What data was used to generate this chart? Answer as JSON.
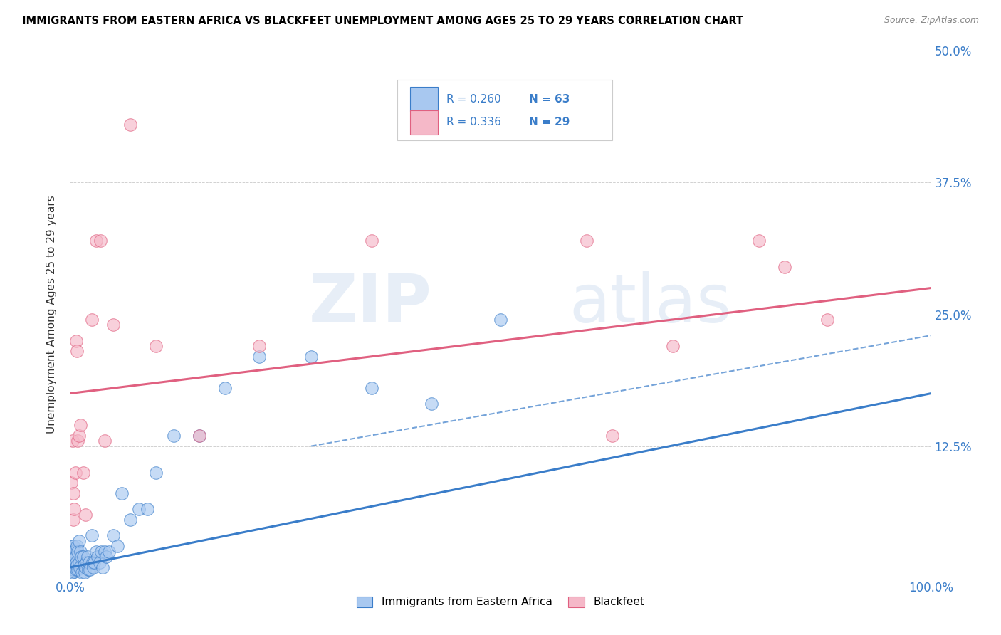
{
  "title": "IMMIGRANTS FROM EASTERN AFRICA VS BLACKFEET UNEMPLOYMENT AMONG AGES 25 TO 29 YEARS CORRELATION CHART",
  "source": "Source: ZipAtlas.com",
  "ylabel": "Unemployment Among Ages 25 to 29 years",
  "xlim": [
    0,
    1.0
  ],
  "ylim": [
    0,
    0.5
  ],
  "xtick_labels": [
    "0.0%",
    "100.0%"
  ],
  "xtick_positions": [
    0.0,
    1.0
  ],
  "ytick_labels": [
    "12.5%",
    "25.0%",
    "37.5%",
    "50.0%"
  ],
  "ytick_positions": [
    0.125,
    0.25,
    0.375,
    0.5
  ],
  "legend_label1": "Immigrants from Eastern Africa",
  "legend_label2": "Blackfeet",
  "r1": "0.260",
  "n1": "63",
  "r2": "0.336",
  "n2": "29",
  "color_blue": "#A8C8F0",
  "color_pink": "#F5B8C8",
  "color_blue_line": "#3A7DC9",
  "color_pink_line": "#E06080",
  "watermark_zip": "ZIP",
  "watermark_atlas": "atlas",
  "blue_line_start_y": 0.01,
  "blue_line_end_y": 0.175,
  "pink_line_start_y": 0.175,
  "pink_line_end_y": 0.275,
  "dash_line_start_x": 0.28,
  "dash_line_start_y": 0.125,
  "dash_line_end_x": 1.0,
  "dash_line_end_y": 0.23,
  "blue_x": [
    0.001,
    0.002,
    0.002,
    0.003,
    0.003,
    0.003,
    0.004,
    0.004,
    0.004,
    0.004,
    0.005,
    0.005,
    0.005,
    0.006,
    0.006,
    0.007,
    0.007,
    0.008,
    0.008,
    0.009,
    0.009,
    0.01,
    0.01,
    0.011,
    0.012,
    0.013,
    0.014,
    0.015,
    0.016,
    0.017,
    0.018,
    0.019,
    0.02,
    0.021,
    0.022,
    0.023,
    0.025,
    0.026,
    0.027,
    0.028,
    0.03,
    0.032,
    0.034,
    0.036,
    0.038,
    0.04,
    0.042,
    0.045,
    0.05,
    0.055,
    0.06,
    0.07,
    0.08,
    0.09,
    0.1,
    0.12,
    0.15,
    0.18,
    0.22,
    0.28,
    0.35,
    0.5,
    0.42
  ],
  "blue_y": [
    0.02,
    0.03,
    0.025,
    0.015,
    0.02,
    0.005,
    0.03,
    0.025,
    0.012,
    0.008,
    0.018,
    0.012,
    0.006,
    0.02,
    0.01,
    0.008,
    0.015,
    0.03,
    0.012,
    0.025,
    0.008,
    0.035,
    0.015,
    0.01,
    0.025,
    0.02,
    0.005,
    0.02,
    0.012,
    0.005,
    0.01,
    0.015,
    0.02,
    0.008,
    0.015,
    0.008,
    0.04,
    0.015,
    0.01,
    0.015,
    0.025,
    0.02,
    0.015,
    0.025,
    0.01,
    0.025,
    0.02,
    0.025,
    0.04,
    0.03,
    0.08,
    0.055,
    0.065,
    0.065,
    0.1,
    0.135,
    0.135,
    0.18,
    0.21,
    0.21,
    0.18,
    0.245,
    0.165
  ],
  "pink_x": [
    0.001,
    0.003,
    0.004,
    0.004,
    0.005,
    0.006,
    0.007,
    0.008,
    0.009,
    0.01,
    0.012,
    0.015,
    0.018,
    0.025,
    0.03,
    0.035,
    0.04,
    0.05,
    0.07,
    0.1,
    0.15,
    0.22,
    0.35,
    0.6,
    0.63,
    0.7,
    0.8,
    0.83,
    0.88
  ],
  "pink_y": [
    0.09,
    0.13,
    0.08,
    0.055,
    0.065,
    0.1,
    0.225,
    0.215,
    0.13,
    0.135,
    0.145,
    0.1,
    0.06,
    0.245,
    0.32,
    0.32,
    0.13,
    0.24,
    0.43,
    0.22,
    0.135,
    0.22,
    0.32,
    0.32,
    0.135,
    0.22,
    0.32,
    0.295,
    0.245
  ]
}
